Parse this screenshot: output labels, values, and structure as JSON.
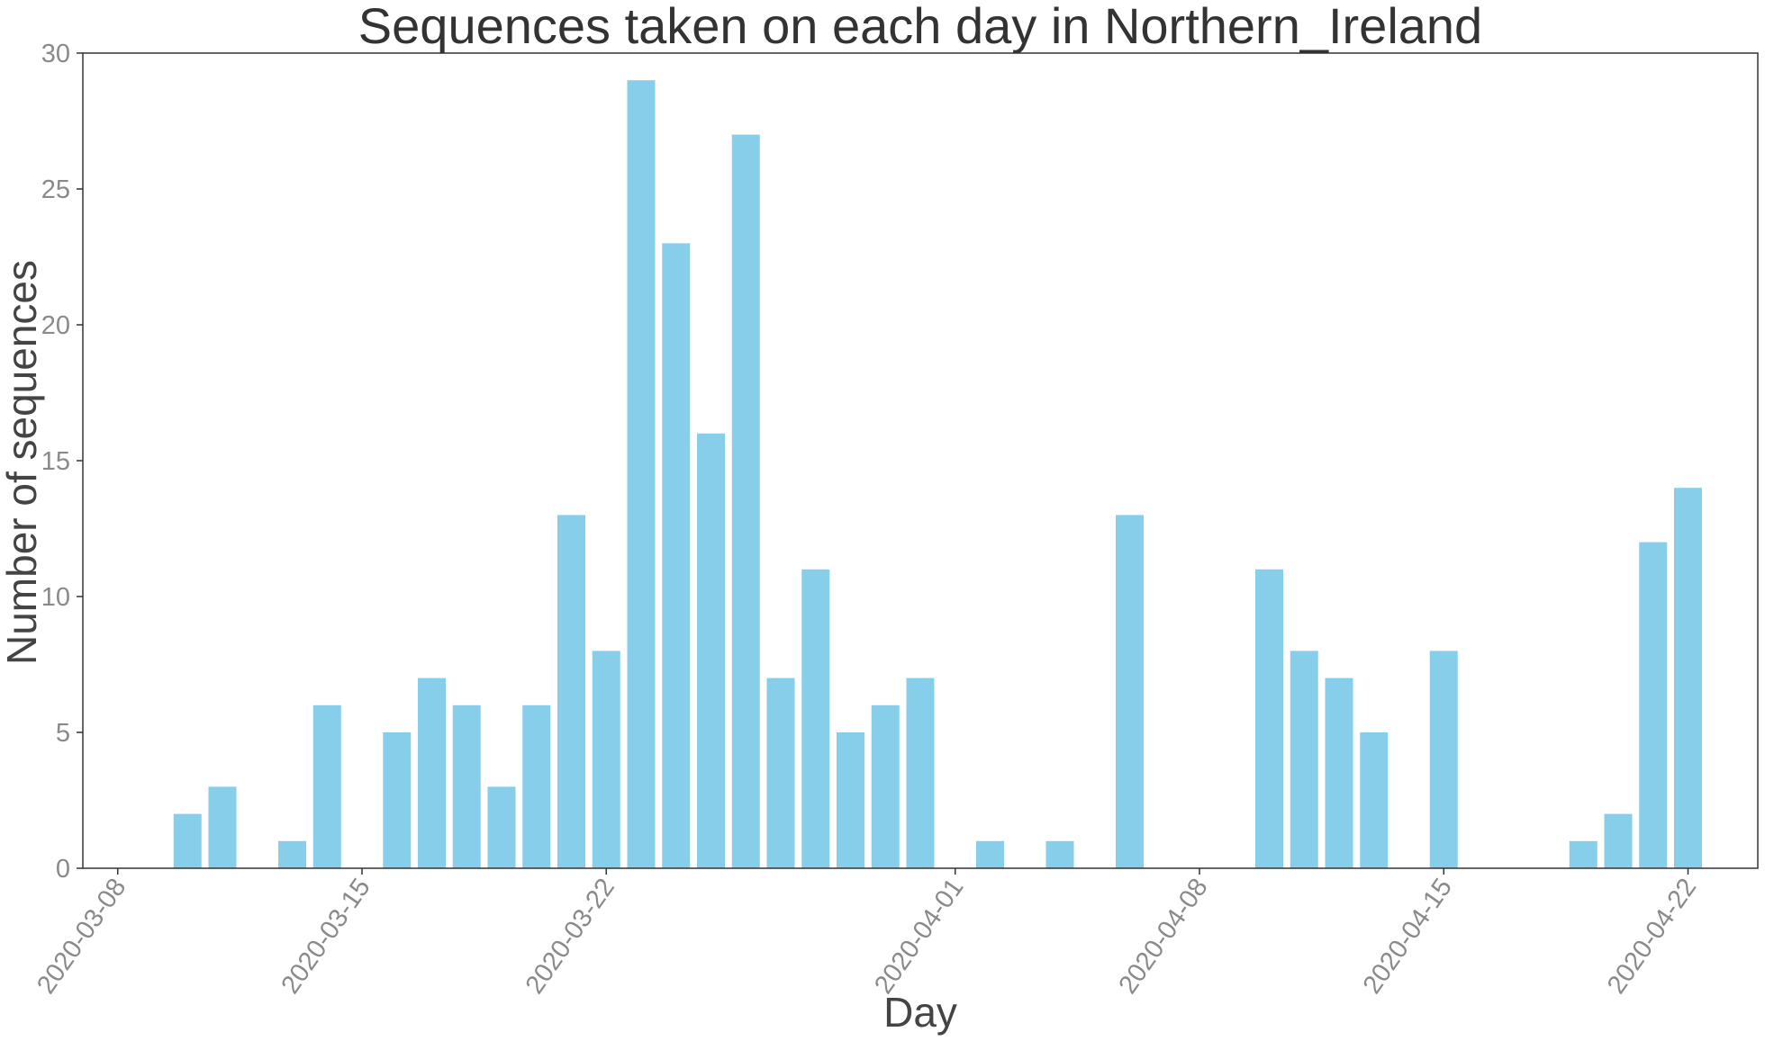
{
  "chart_data": {
    "type": "bar",
    "title": "Sequences taken on each day in Northern_Ireland",
    "xlabel": "Day",
    "ylabel": "Number of sequences",
    "ylim": [
      0,
      30
    ],
    "yticks": [
      0,
      5,
      10,
      15,
      20,
      25,
      30
    ],
    "xlim": [
      "2020-03-07",
      "2020-04-24"
    ],
    "xticks": [
      "2020-03-08",
      "2020-03-15",
      "2020-03-22",
      "2020-04-01",
      "2020-04-08",
      "2020-04-15",
      "2020-04-22"
    ],
    "grid": false,
    "color": "#87CEEB",
    "x": [
      "2020-03-10",
      "2020-03-11",
      "2020-03-13",
      "2020-03-14",
      "2020-03-16",
      "2020-03-17",
      "2020-03-18",
      "2020-03-19",
      "2020-03-20",
      "2020-03-21",
      "2020-03-22",
      "2020-03-23",
      "2020-03-24",
      "2020-03-25",
      "2020-03-26",
      "2020-03-27",
      "2020-03-28",
      "2020-03-29",
      "2020-03-30",
      "2020-03-31",
      "2020-04-02",
      "2020-04-04",
      "2020-04-06",
      "2020-04-10",
      "2020-04-11",
      "2020-04-12",
      "2020-04-13",
      "2020-04-15",
      "2020-04-19",
      "2020-04-20",
      "2020-04-21",
      "2020-04-22"
    ],
    "values": [
      2,
      3,
      1,
      6,
      5,
      7,
      6,
      3,
      6,
      13,
      8,
      29,
      23,
      16,
      27,
      7,
      11,
      5,
      6,
      7,
      1,
      1,
      13,
      11,
      8,
      7,
      5,
      8,
      1,
      2,
      12,
      14
    ]
  }
}
